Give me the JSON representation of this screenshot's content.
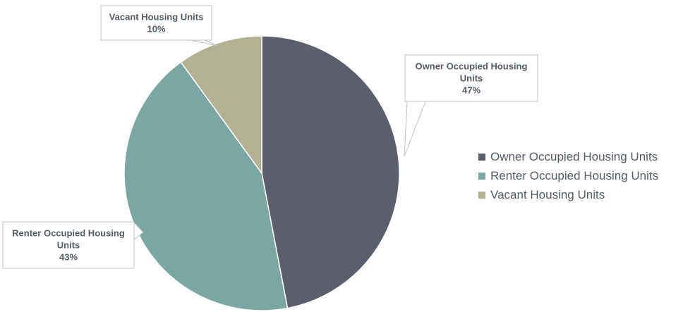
{
  "chart_data": {
    "type": "pie",
    "title": "",
    "slices": [
      {
        "label": "Owner Occupied Housing Units",
        "value": 47,
        "percent_label": "47%",
        "color": "#5c5e6c",
        "callout_lines": [
          "Owner Occupied Housing",
          "Units",
          "47%"
        ]
      },
      {
        "label": "Renter Occupied Housing Units",
        "value": 43,
        "percent_label": "43%",
        "color": "#7ba6a1",
        "callout_lines": [
          "Renter Occupied Housing",
          "Units",
          "43%"
        ]
      },
      {
        "label": "Vacant Housing Units",
        "value": 10,
        "percent_label": "10%",
        "color": "#b2b193",
        "callout_lines": [
          "Vacant Housing Units",
          "10%"
        ]
      }
    ],
    "legend": {
      "position": "right",
      "entries": [
        "Owner Occupied Housing Units",
        "Renter Occupied Housing Units",
        "Vacant Housing Units"
      ]
    }
  }
}
